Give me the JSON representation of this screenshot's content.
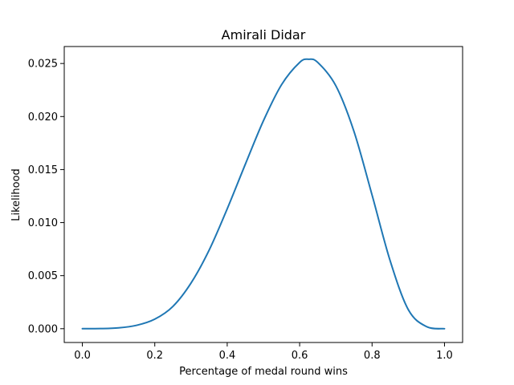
{
  "chart_data": {
    "type": "line",
    "title": "Amirali Didar",
    "xlabel": "Percentage of medal round wins",
    "ylabel": "Likelihood",
    "xlim": [
      -0.05,
      1.05
    ],
    "ylim": [
      -0.0013,
      0.0266
    ],
    "xticks": [
      0.0,
      0.2,
      0.4,
      0.6,
      0.8,
      1.0
    ],
    "xtick_labels": [
      "0.0",
      "0.2",
      "0.4",
      "0.6",
      "0.8",
      "1.0"
    ],
    "yticks": [
      0.0,
      0.005,
      0.01,
      0.015,
      0.02,
      0.025
    ],
    "ytick_labels": [
      "0.000",
      "0.005",
      "0.010",
      "0.015",
      "0.020",
      "0.025"
    ],
    "grid": false,
    "legend": "none",
    "series": [
      {
        "color": "#1f77b4",
        "x": [
          0.0,
          0.05,
          0.1,
          0.15,
          0.2,
          0.25,
          0.3,
          0.35,
          0.4,
          0.45,
          0.5,
          0.55,
          0.6,
          0.625,
          0.65,
          0.7,
          0.75,
          0.8,
          0.85,
          0.9,
          0.95,
          1.0
        ],
        "y": [
          0.0,
          1e-05,
          8e-05,
          0.00032,
          0.0009,
          0.0021,
          0.0043,
          0.0074,
          0.0113,
          0.0155,
          0.0196,
          0.023,
          0.0251,
          0.0254,
          0.0251,
          0.0229,
          0.0186,
          0.0126,
          0.0064,
          0.0018,
          0.0002,
          0.0
        ]
      }
    ]
  }
}
